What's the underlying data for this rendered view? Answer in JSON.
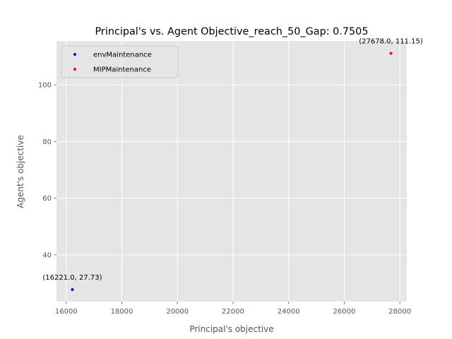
{
  "chart_data": {
    "type": "scatter",
    "title": "Principal's vs. Agent Objective_reach_50_Gap: 0.7505",
    "xlabel": "Principal's objective",
    "ylabel": "Agent's objective",
    "xlim": [
      15650,
      28250
    ],
    "ylim": [
      23.5,
      115.5
    ],
    "xticks": [
      16000,
      18000,
      20000,
      22000,
      24000,
      26000,
      28000
    ],
    "yticks": [
      40,
      60,
      80,
      100
    ],
    "grid": true,
    "legend_position": "top-left",
    "background": "#e5e5e5",
    "series": [
      {
        "name": "envMaintenance",
        "color": "#0000ff",
        "points": [
          {
            "x": 16221.0,
            "y": 27.73,
            "label": "(16221.0, 27.73)"
          }
        ]
      },
      {
        "name": "MIPMaintenance",
        "color": "#ff0000",
        "points": [
          {
            "x": 27678.0,
            "y": 111.15,
            "label": "(27678.0, 111.15)"
          }
        ]
      }
    ]
  }
}
